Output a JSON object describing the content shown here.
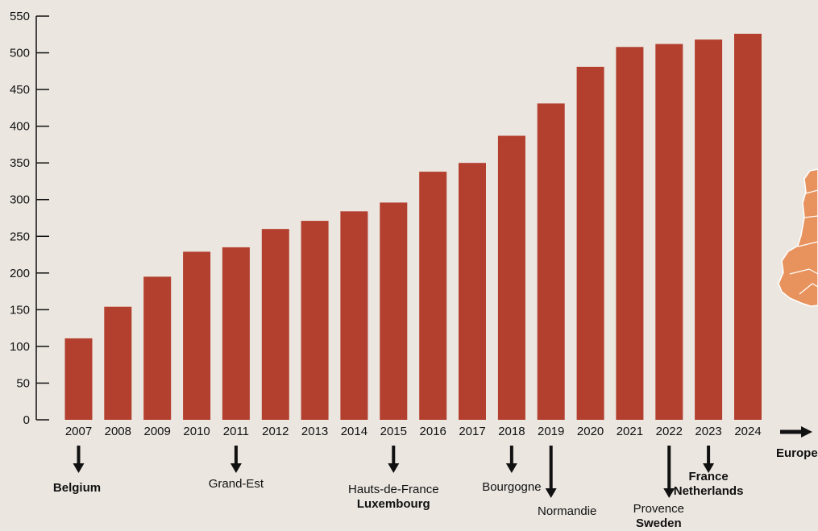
{
  "chart_data": {
    "type": "bar",
    "categories": [
      "2007",
      "2008",
      "2009",
      "2010",
      "2011",
      "2012",
      "2013",
      "2014",
      "2015",
      "2016",
      "2017",
      "2018",
      "2019",
      "2020",
      "2021",
      "2022",
      "2023",
      "2024"
    ],
    "values": [
      111,
      154,
      195,
      229,
      235,
      260,
      271,
      284,
      296,
      338,
      350,
      387,
      431,
      481,
      508,
      512,
      518,
      526
    ],
    "title": "",
    "xlabel": "",
    "ylabel": "",
    "ylim": [
      0,
      550
    ],
    "yticks": [
      0,
      50,
      100,
      150,
      200,
      250,
      300,
      350,
      400,
      450,
      500,
      550
    ],
    "grid": false,
    "legend": "none",
    "bar_color": "#b33f2e",
    "annotations": [
      {
        "year": "2007",
        "arrow_length": "short",
        "lines": [
          {
            "text": "Belgium",
            "bold": true
          }
        ]
      },
      {
        "year": "2011",
        "arrow_length": "short",
        "lines": [
          {
            "text": "Grand-Est",
            "bold": false
          }
        ]
      },
      {
        "year": "2015",
        "arrow_length": "short",
        "lines": [
          {
            "text": "Hauts-de-France",
            "bold": false
          },
          {
            "text": "Luxembourg",
            "bold": true
          }
        ]
      },
      {
        "year": "2018",
        "arrow_length": "short",
        "lines": [
          {
            "text": "Bourgogne",
            "bold": false
          }
        ]
      },
      {
        "year": "2019",
        "arrow_length": "long",
        "lines": [
          {
            "text": "Normandie",
            "bold": false
          }
        ]
      },
      {
        "year": "2022",
        "arrow_length": "long",
        "lines": [
          {
            "text": "Provence",
            "bold": false
          },
          {
            "text": "Sweden",
            "bold": true
          }
        ]
      },
      {
        "year": "2023",
        "arrow_length": "short",
        "lines": [
          {
            "text": "France",
            "bold": true
          },
          {
            "text": "Netherlands",
            "bold": true
          }
        ]
      }
    ],
    "continuation_label": "Europe"
  },
  "colors": {
    "background": "#ebe6e0",
    "bar": "#b33f2e",
    "map": "#e8935e"
  },
  "decoration": {
    "map_icon": "europe-map-icon"
  }
}
